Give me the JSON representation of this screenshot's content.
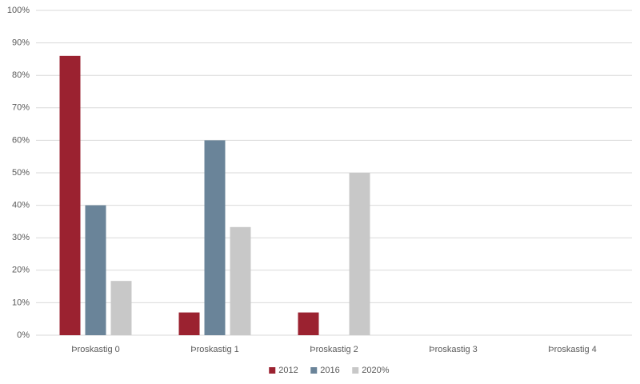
{
  "chart_data": {
    "type": "bar",
    "categories": [
      "Þroskastig 0",
      "Þroskastig 1",
      "Þroskastig 2",
      "Þroskastig 3",
      "Þroskastig 4"
    ],
    "series": [
      {
        "name": "2012",
        "color": "#9b2230",
        "values": [
          86,
          7,
          7,
          0,
          0
        ]
      },
      {
        "name": "2016",
        "color": "#6a8499",
        "values": [
          40,
          60,
          0,
          0,
          0
        ]
      },
      {
        "name": "2020%",
        "color": "#c8c8c8",
        "values": [
          16.7,
          33.3,
          50,
          0,
          0
        ]
      }
    ],
    "ylim": [
      0,
      100
    ],
    "yticks": [
      {
        "value": 0,
        "label": "0%"
      },
      {
        "value": 10,
        "label": "10%"
      },
      {
        "value": 20,
        "label": "20%"
      },
      {
        "value": 30,
        "label": "30%"
      },
      {
        "value": 40,
        "label": "40%"
      },
      {
        "value": 50,
        "label": "50%"
      },
      {
        "value": 60,
        "label": "60%"
      },
      {
        "value": 70,
        "label": "70%"
      },
      {
        "value": 80,
        "label": "80%"
      },
      {
        "value": 90,
        "label": "90%"
      },
      {
        "value": 100,
        "label": "100%"
      }
    ],
    "grid": true,
    "legend": "bottom"
  }
}
